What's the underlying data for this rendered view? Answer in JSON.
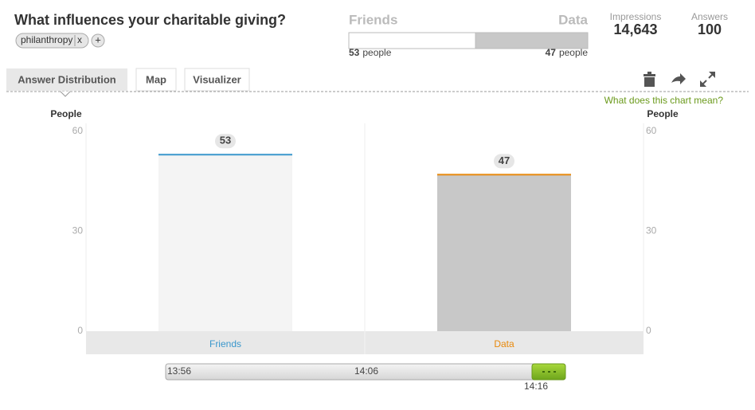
{
  "header": {
    "title": "What influences your charitable giving?",
    "tag": "philanthropy",
    "tag_remove": "x",
    "tag_add": "+"
  },
  "summary": {
    "segments": [
      {
        "name": "Friends",
        "count": 53,
        "color": "#ffffff"
      },
      {
        "name": "Data",
        "count": 47,
        "color": "#c8c8c8"
      }
    ],
    "unit": "people"
  },
  "stats": [
    {
      "label": "Impressions",
      "value": "14,643"
    },
    {
      "label": "Answers",
      "value": 100
    }
  ],
  "tabs": [
    "Answer Distribution",
    "Map",
    "Visualizer"
  ],
  "help_link": "What does this chart mean?",
  "chart_data": {
    "type": "bar",
    "ylabel": "People",
    "y2label": "People",
    "categories": [
      "Friends",
      "Data"
    ],
    "values": [
      53,
      47
    ],
    "colors": [
      "#f4f4f4",
      "#c8c8c8"
    ],
    "accent_colors": [
      "#3a97cc",
      "#e8890c"
    ],
    "ylim": [
      0,
      60
    ],
    "yticks": [
      0,
      30,
      60
    ],
    "y2lim": [
      0,
      60
    ],
    "y2ticks": [
      0,
      30,
      60
    ],
    "grid": false
  },
  "timeline": {
    "labels": [
      "13:56",
      "14:06",
      "14:16"
    ]
  }
}
